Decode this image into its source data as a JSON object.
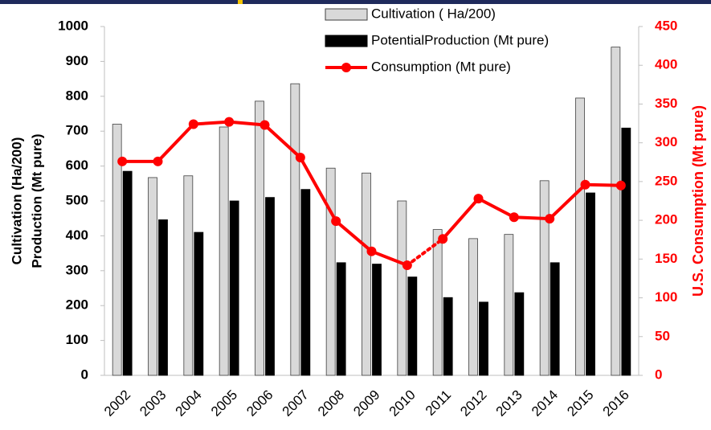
{
  "chart_data": {
    "type": "bar_line",
    "categories": [
      "2002",
      "2003",
      "2004",
      "2005",
      "2006",
      "2007",
      "2008",
      "2009",
      "2010",
      "2011",
      "2012",
      "2013",
      "2014",
      "2015",
      "2016"
    ],
    "series": [
      {
        "name": "Cultivation ( Ha/200)",
        "color": "#d9d9d9",
        "type": "bar",
        "values": [
          720,
          567,
          572,
          712,
          786,
          836,
          594,
          580,
          500,
          418,
          392,
          404,
          558,
          795,
          941
        ]
      },
      {
        "name": "PotentialProduction (Mt pure)",
        "color": "#000000",
        "type": "bar",
        "values": [
          585,
          446,
          410,
          500,
          510,
          533,
          323,
          319,
          282,
          223,
          210,
          237,
          323,
          523,
          709
        ]
      },
      {
        "name": "Consumption (Mt pure)",
        "color": "#ff0000",
        "type": "line",
        "axis": "y2",
        "values": [
          276,
          276,
          324,
          327,
          323,
          281,
          199,
          160,
          142,
          176,
          228,
          204,
          202,
          246,
          245
        ],
        "segment_styles": [
          "solid",
          "solid",
          "solid",
          "solid",
          "solid",
          "solid",
          "solid",
          "solid",
          "dotted",
          "solid",
          "solid",
          "solid",
          "solid",
          "solid"
        ]
      }
    ],
    "ylabel": [
      "Cultivation (Ha/200)",
      "Production (Mt pure)"
    ],
    "y2label": "U.S. Consumption (Mt pure)",
    "ylim": [
      0,
      1000
    ],
    "yticks": [
      0,
      100,
      200,
      300,
      400,
      500,
      600,
      700,
      800,
      900,
      1000
    ],
    "y2lim": [
      0,
      450
    ],
    "y2ticks": [
      0,
      50,
      100,
      150,
      200,
      250,
      300,
      350,
      400,
      450
    ],
    "grid": false
  }
}
